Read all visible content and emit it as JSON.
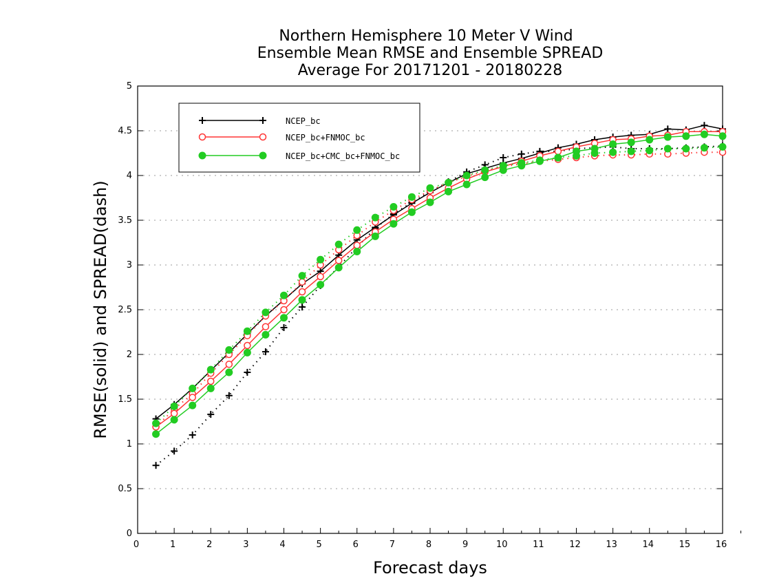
{
  "chart_data": {
    "type": "line",
    "title": [
      "Northern Hemisphere 10 Meter V Wind",
      "Ensemble Mean RMSE and Ensemble SPREAD",
      "Average For 20171201 - 20180228"
    ],
    "xlabel": "Forecast days",
    "ylabel": "RMSE(solid) and SPREAD(dash)",
    "xlim": [
      0,
      16
    ],
    "ylim": [
      0,
      5
    ],
    "xticks": [
      "0",
      "1",
      "2",
      "3",
      "4",
      "5",
      "6",
      "7",
      "8",
      "9",
      "10",
      "11",
      "12",
      "13",
      "14",
      "15",
      "16"
    ],
    "yticks": [
      "0",
      "0.5",
      "1",
      "1.5",
      "2",
      "2.5",
      "3",
      "3.5",
      "4",
      "4.5",
      "5"
    ],
    "grid": "horizontal-dotted",
    "legend_position": "top-left",
    "x": [
      0.5,
      1,
      1.5,
      2,
      2.5,
      3,
      3.5,
      4,
      4.5,
      5,
      5.5,
      6,
      6.5,
      7,
      7.5,
      8,
      8.5,
      9,
      9.5,
      10,
      10.5,
      11,
      11.5,
      12,
      12.5,
      13,
      13.5,
      14,
      14.5,
      15,
      15.5,
      16
    ],
    "series": [
      {
        "name": "NCEP_bc",
        "color": "#000000",
        "marker": "plus",
        "rmse": [
          1.28,
          1.44,
          1.62,
          1.82,
          2.02,
          2.23,
          2.43,
          2.61,
          2.79,
          2.93,
          3.11,
          3.28,
          3.42,
          3.56,
          3.69,
          3.81,
          3.92,
          4.02,
          4.08,
          4.14,
          4.19,
          4.25,
          4.31,
          4.35,
          4.4,
          4.43,
          4.45,
          4.46,
          4.52,
          4.51,
          4.56,
          4.52
        ],
        "spread": [
          0.76,
          0.92,
          1.1,
          1.33,
          1.54,
          1.8,
          2.03,
          2.3,
          2.53,
          2.77,
          2.98,
          3.2,
          3.41,
          3.57,
          3.7,
          3.82,
          3.93,
          4.04,
          4.12,
          4.2,
          4.24,
          4.27,
          4.27,
          4.3,
          4.31,
          4.32,
          4.3,
          4.3,
          4.3,
          4.31,
          4.32,
          4.33
        ]
      },
      {
        "name": "NCEP_bc+FNMOC_bc",
        "color": "#ff3333",
        "marker": "circle",
        "rmse": [
          1.19,
          1.34,
          1.52,
          1.7,
          1.89,
          2.1,
          2.31,
          2.5,
          2.7,
          2.87,
          3.05,
          3.22,
          3.37,
          3.51,
          3.63,
          3.75,
          3.86,
          3.96,
          4.04,
          4.1,
          4.16,
          4.22,
          4.27,
          4.32,
          4.36,
          4.4,
          4.41,
          4.44,
          4.45,
          4.49,
          4.49,
          4.49
        ],
        "spread": [
          1.19,
          1.39,
          1.56,
          1.79,
          2.0,
          2.21,
          2.43,
          2.6,
          2.81,
          3.0,
          3.17,
          3.33,
          3.48,
          3.61,
          3.73,
          3.83,
          3.92,
          3.99,
          4.05,
          4.1,
          4.13,
          4.16,
          4.18,
          4.2,
          4.22,
          4.23,
          4.23,
          4.24,
          4.24,
          4.25,
          4.26,
          4.26
        ]
      },
      {
        "name": "NCEP_bc+CMC_bc+FNMOC_bc",
        "color": "#22cc22",
        "marker": "filled-circle",
        "rmse": [
          1.11,
          1.27,
          1.43,
          1.62,
          1.8,
          2.02,
          2.22,
          2.41,
          2.61,
          2.78,
          2.97,
          3.15,
          3.32,
          3.46,
          3.59,
          3.7,
          3.82,
          3.9,
          3.98,
          4.06,
          4.11,
          4.16,
          4.2,
          4.27,
          4.3,
          4.35,
          4.37,
          4.4,
          4.43,
          4.44,
          4.46,
          4.44
        ],
        "spread": [
          1.23,
          1.42,
          1.62,
          1.83,
          2.05,
          2.26,
          2.47,
          2.66,
          2.88,
          3.06,
          3.23,
          3.39,
          3.53,
          3.65,
          3.76,
          3.86,
          3.92,
          4.0,
          4.06,
          4.11,
          4.14,
          4.17,
          4.2,
          4.22,
          4.25,
          4.26,
          4.27,
          4.28,
          4.3,
          4.3,
          4.31,
          4.32
        ]
      }
    ]
  }
}
